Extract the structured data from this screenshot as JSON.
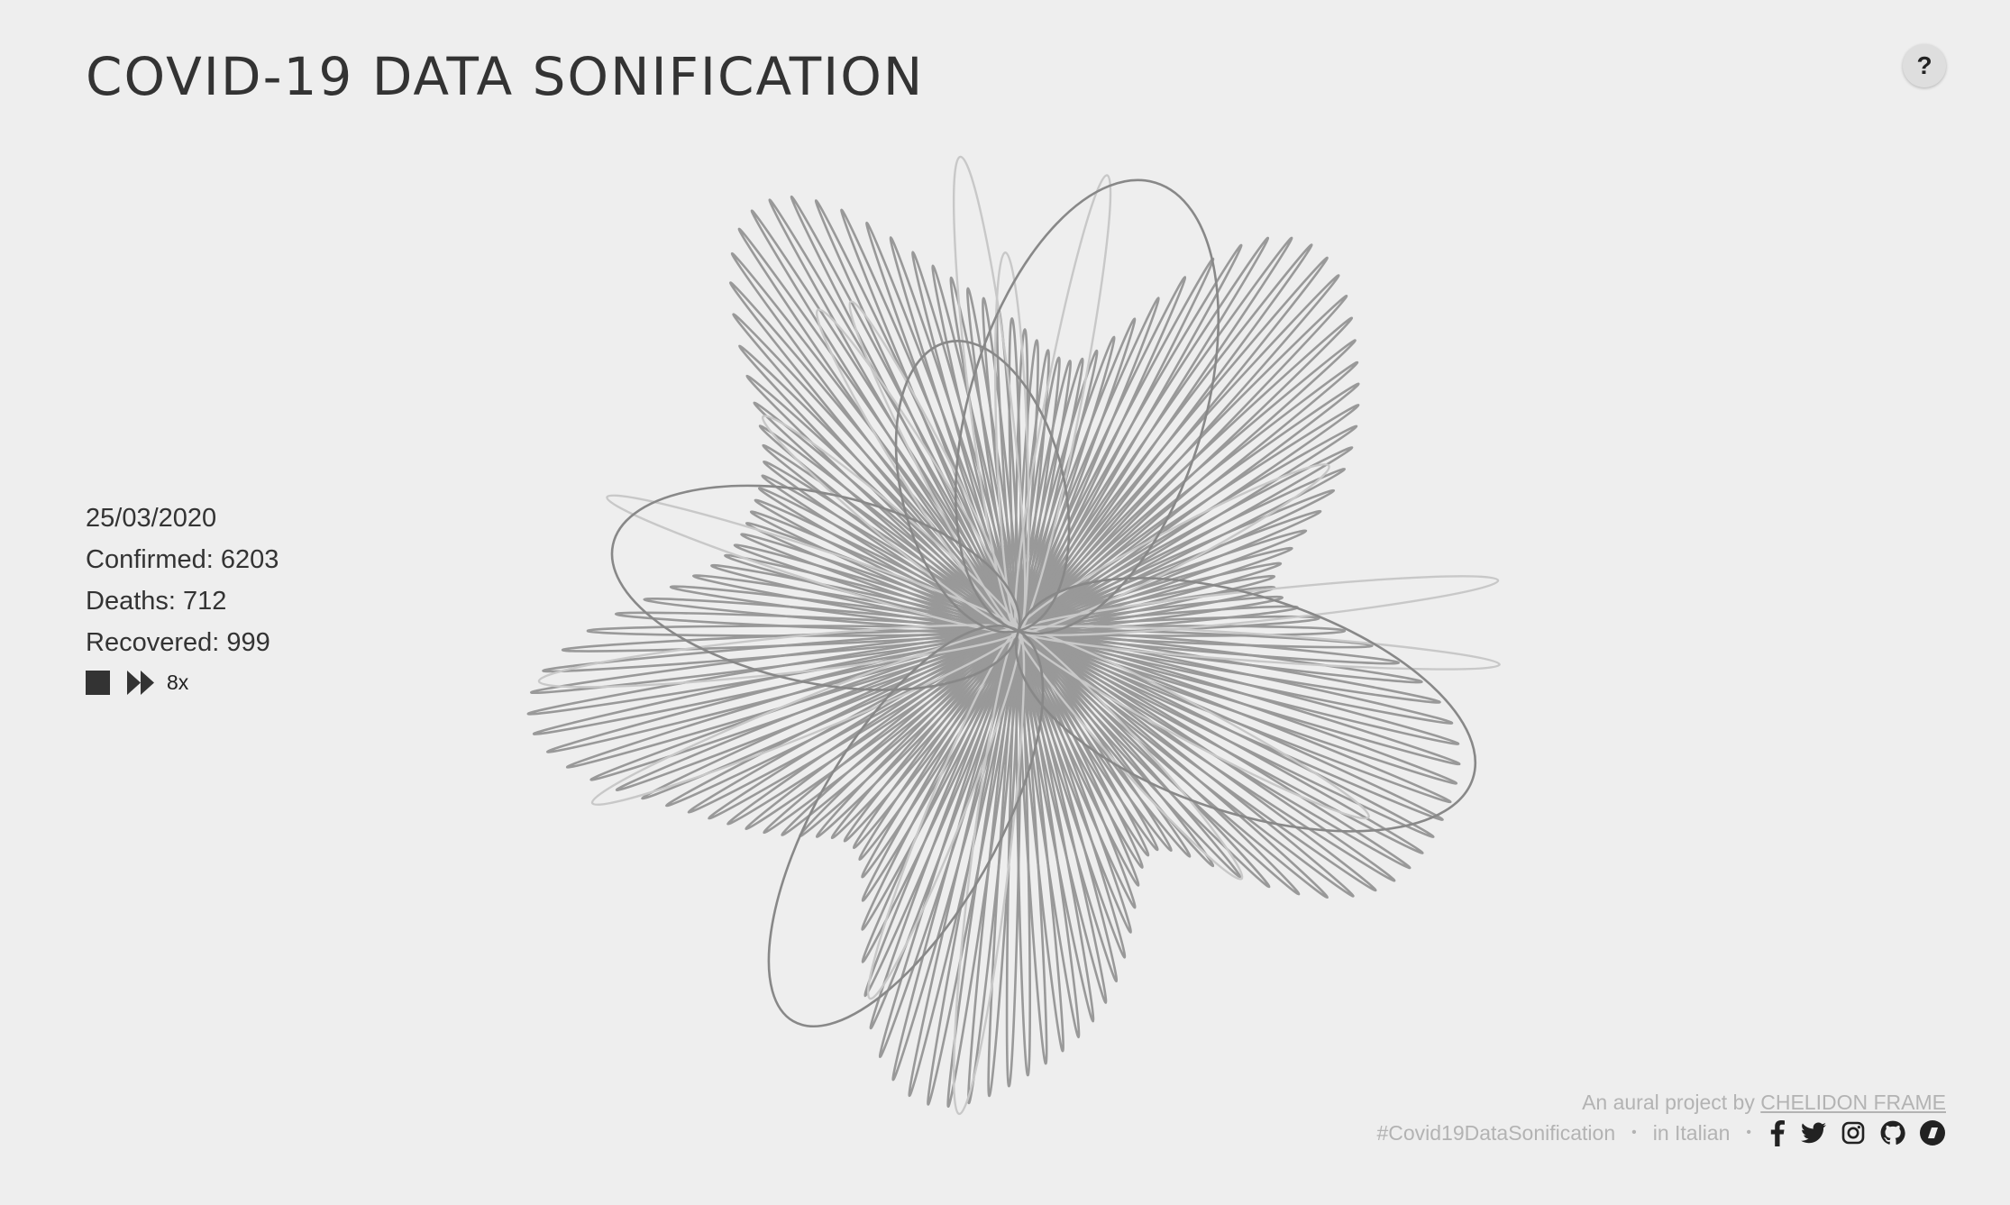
{
  "title": "COVID-19 DATA SONIFICATION",
  "help_label": "?",
  "stats": {
    "date": "25/03/2020",
    "confirmed_label": "Confirmed:",
    "confirmed_value": "6203",
    "deaths_label": "Deaths:",
    "deaths_value": "712",
    "recovered_label": "Recovered:",
    "recovered_value": "999"
  },
  "controls": {
    "stop_icon": "stop-icon",
    "fast_forward_icon": "fast-forward-icon",
    "speed": "8x"
  },
  "footer": {
    "credit_prefix": "An aural project by",
    "credit_link": "CHELIDON FRAME",
    "hashtag": "#Covid19DataSonification",
    "separator": "•",
    "language_link": "in Italian",
    "social_icons": [
      "facebook-icon",
      "twitter-icon",
      "instagram-icon",
      "github-icon",
      "behance-icon"
    ]
  },
  "colors": {
    "background": "#eeeeee",
    "text": "#333333",
    "footer_text": "#b3b3b3",
    "petal_dark": "#888888",
    "petal_medium": "#999999",
    "petal_light": "#c8c8c8"
  }
}
